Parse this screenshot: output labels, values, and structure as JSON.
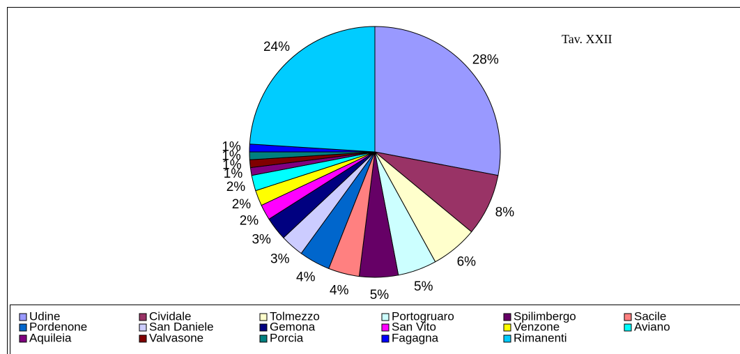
{
  "chart_data": {
    "type": "pie",
    "annotation": "Tav. XXII",
    "categories": [
      "Udine",
      "Cividale",
      "Tolmezzo",
      "Portogruaro",
      "Spilimbergo",
      "Sacile",
      "Pordenone",
      "San Daniele",
      "Gemona",
      "San Vito",
      "Venzone",
      "Aviano",
      "Aquileia",
      "Valvasone",
      "Porcia",
      "Fagagna",
      "Rimanenti"
    ],
    "values": [
      28,
      8,
      6,
      5,
      5,
      4,
      4,
      3,
      3,
      2,
      2,
      2,
      1,
      1,
      1,
      1,
      24
    ],
    "value_labels": [
      "28%",
      "8%",
      "6%",
      "5%",
      "5%",
      "4%",
      "4%",
      "3%",
      "3%",
      "2%",
      "2%",
      "2%",
      "1%",
      "1%",
      "1%",
      "1%",
      "24%"
    ],
    "colors": [
      "#9999ff",
      "#993366",
      "#ffffcc",
      "#ccffff",
      "#660066",
      "#ff8080",
      "#0066cc",
      "#ccccff",
      "#000080",
      "#ff00ff",
      "#ffff00",
      "#00ffff",
      "#800080",
      "#800000",
      "#008080",
      "#0000ff",
      "#00ccff"
    ],
    "legend": "bottom"
  }
}
